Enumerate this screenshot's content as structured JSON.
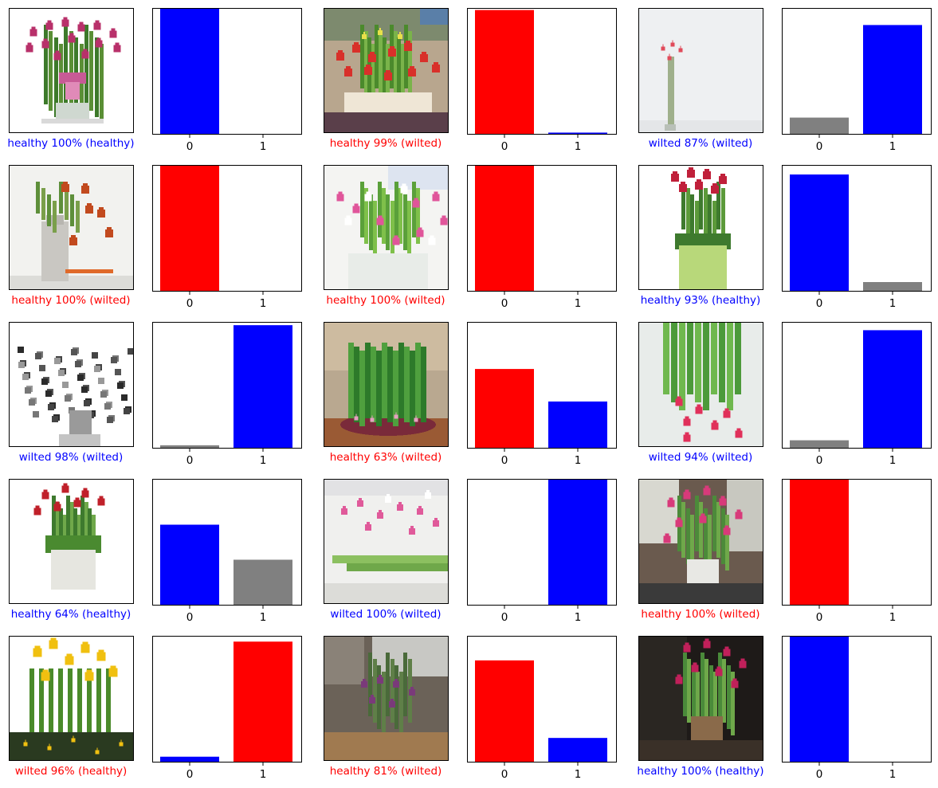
{
  "colors": {
    "correct": "#0000ff",
    "incorrect": "#ff0000",
    "other": "#808080"
  },
  "class_names": [
    "healthy",
    "wilted"
  ],
  "chart_data": [
    {
      "type": "bar",
      "categories": [
        "0",
        "1"
      ],
      "values": [
        1.0,
        0.0
      ],
      "ylim": [
        0,
        1
      ],
      "predicted": 0,
      "true": 0,
      "caption": "healthy 100% (healthy)",
      "image": "pink-tulips-bow-icon"
    },
    {
      "type": "bar",
      "categories": [
        "0",
        "1"
      ],
      "values": [
        0.99,
        0.01
      ],
      "ylim": [
        0,
        1
      ],
      "predicted": 0,
      "true": 1,
      "caption": "healthy 99% (wilted)",
      "image": "red-flowers-table-icon"
    },
    {
      "type": "bar",
      "categories": [
        "0",
        "1"
      ],
      "values": [
        0.13,
        0.87
      ],
      "ylim": [
        0,
        1
      ],
      "predicted": 1,
      "true": 1,
      "caption": "wilted 87% (wilted)",
      "image": "single-stem-vase-icon"
    },
    {
      "type": "bar",
      "categories": [
        "0",
        "1"
      ],
      "values": [
        1.0,
        0.0
      ],
      "ylim": [
        0,
        1
      ],
      "predicted": 0,
      "true": 1,
      "caption": "healthy 100% (wilted)",
      "image": "drooping-red-tulips-icon"
    },
    {
      "type": "bar",
      "categories": [
        "0",
        "1"
      ],
      "values": [
        1.0,
        0.0
      ],
      "ylim": [
        0,
        1
      ],
      "predicted": 0,
      "true": 1,
      "caption": "healthy 100% (wilted)",
      "image": "pink-white-bouquet-icon"
    },
    {
      "type": "bar",
      "categories": [
        "0",
        "1"
      ],
      "values": [
        0.93,
        0.07
      ],
      "ylim": [
        0,
        1
      ],
      "predicted": 0,
      "true": 0,
      "caption": "healthy 93% (healthy)",
      "image": "red-tulips-green-pot-icon"
    },
    {
      "type": "bar",
      "categories": [
        "0",
        "1"
      ],
      "values": [
        0.02,
        0.98
      ],
      "ylim": [
        0,
        1
      ],
      "predicted": 1,
      "true": 1,
      "caption": "wilted 98% (wilted)",
      "image": "grayscale-bouquet-icon"
    },
    {
      "type": "bar",
      "categories": [
        "0",
        "1"
      ],
      "values": [
        0.63,
        0.37
      ],
      "ylim": [
        0,
        1
      ],
      "predicted": 0,
      "true": 1,
      "caption": "healthy 63% (wilted)",
      "image": "drooping-green-plant-icon"
    },
    {
      "type": "bar",
      "categories": [
        "0",
        "1"
      ],
      "values": [
        0.06,
        0.94
      ],
      "ylim": [
        0,
        1
      ],
      "predicted": 1,
      "true": 1,
      "caption": "wilted 94% (wilted)",
      "image": "hanging-pink-tulips-icon"
    },
    {
      "type": "bar",
      "categories": [
        "0",
        "1"
      ],
      "values": [
        0.64,
        0.36
      ],
      "ylim": [
        0,
        1
      ],
      "predicted": 0,
      "true": 0,
      "caption": "healthy 64% (healthy)",
      "image": "red-tulips-white-pot-icon"
    },
    {
      "type": "bar",
      "categories": [
        "0",
        "1"
      ],
      "values": [
        0.0,
        1.0
      ],
      "ylim": [
        0,
        1
      ],
      "predicted": 1,
      "true": 1,
      "caption": "wilted 100% (wilted)",
      "image": "pink-tulips-leaves-icon"
    },
    {
      "type": "bar",
      "categories": [
        "0",
        "1"
      ],
      "values": [
        1.0,
        0.0
      ],
      "ylim": [
        0,
        1
      ],
      "predicted": 0,
      "true": 1,
      "caption": "healthy 100% (wilted)",
      "image": "pink-tulips-window-icon"
    },
    {
      "type": "bar",
      "categories": [
        "0",
        "1"
      ],
      "values": [
        0.04,
        0.96
      ],
      "ylim": [
        0,
        1
      ],
      "predicted": 1,
      "true": 0,
      "caption": "wilted 96% (healthy)",
      "image": "yellow-tulips-icon"
    },
    {
      "type": "bar",
      "categories": [
        "0",
        "1"
      ],
      "values": [
        0.81,
        0.19
      ],
      "ylim": [
        0,
        1
      ],
      "predicted": 0,
      "true": 1,
      "caption": "healthy 81% (wilted)",
      "image": "purple-bouquet-room-icon"
    },
    {
      "type": "bar",
      "categories": [
        "0",
        "1"
      ],
      "values": [
        1.0,
        0.0
      ],
      "ylim": [
        0,
        1
      ],
      "predicted": 0,
      "true": 0,
      "caption": "healthy 100% (healthy)",
      "image": "magenta-flowers-dark-icon"
    }
  ]
}
